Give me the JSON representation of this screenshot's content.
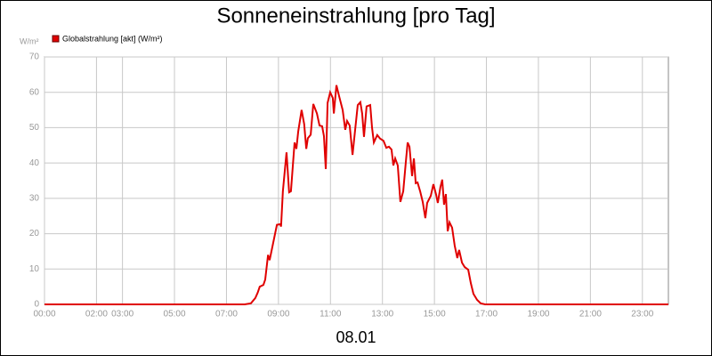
{
  "chart_data": {
    "type": "line",
    "title": "Sonneneinstrahlung [pro Tag]",
    "y_unit": "W/m²",
    "x_label": "08.01",
    "xlim": [
      0,
      24
    ],
    "ylim": [
      0,
      70
    ],
    "yticks": [
      0,
      10,
      20,
      30,
      40,
      50,
      60,
      70
    ],
    "xticks": [
      {
        "value": 0,
        "label": "00:00"
      },
      {
        "value": 2,
        "label": "02:00"
      },
      {
        "value": 3,
        "label": "03:00"
      },
      {
        "value": 5,
        "label": "05:00"
      },
      {
        "value": 7,
        "label": "07:00"
      },
      {
        "value": 9,
        "label": "09:00"
      },
      {
        "value": 11,
        "label": "11:00"
      },
      {
        "value": 13,
        "label": "13:00"
      },
      {
        "value": 15,
        "label": "15:00"
      },
      {
        "value": 17,
        "label": "17:00"
      },
      {
        "value": 19,
        "label": "19:00"
      },
      {
        "value": 21,
        "label": "21:00"
      },
      {
        "value": 23,
        "label": "23:00"
      }
    ],
    "grid": true,
    "series": [
      {
        "name": "Globalstrahlung [akt] (W/m²)",
        "color": "#e00000",
        "x": [
          0,
          7.7,
          7.94,
          8.11,
          8.2,
          8.28,
          8.42,
          8.49,
          8.6,
          8.66,
          8.8,
          8.94,
          9.07,
          9.1,
          9.17,
          9.31,
          9.41,
          9.48,
          9.62,
          9.69,
          9.76,
          9.89,
          9.99,
          10.07,
          10.13,
          10.24,
          10.34,
          10.48,
          10.58,
          10.68,
          10.75,
          10.82,
          10.89,
          10.99,
          11.09,
          11.13,
          11.23,
          11.33,
          11.47,
          11.57,
          11.64,
          11.74,
          11.85,
          11.95,
          12.05,
          12.15,
          12.22,
          12.29,
          12.39,
          12.53,
          12.6,
          12.67,
          12.8,
          12.91,
          13.04,
          13.15,
          13.25,
          13.35,
          13.42,
          13.49,
          13.59,
          13.69,
          13.8,
          13.9,
          13.97,
          14.04,
          14.14,
          14.21,
          14.28,
          14.35,
          14.45,
          14.55,
          14.65,
          14.72,
          14.86,
          14.96,
          15.06,
          15.13,
          15.23,
          15.3,
          15.37,
          15.44,
          15.51,
          15.58,
          15.68,
          15.78,
          15.88,
          15.95,
          16.06,
          16.16,
          16.3,
          16.4,
          16.5,
          16.64,
          16.78,
          16.95,
          24
        ],
        "values": [
          0,
          0,
          0.3,
          1.8,
          3.3,
          5,
          5.5,
          7,
          14,
          12.5,
          17.5,
          22.5,
          22.7,
          22,
          32,
          43,
          31.7,
          32,
          45.8,
          44,
          48.9,
          55,
          51,
          44,
          47,
          48,
          56.7,
          54,
          50.6,
          50.4,
          47.6,
          38.3,
          57,
          60,
          58.4,
          54,
          62,
          59,
          55,
          49.4,
          51.9,
          50.6,
          42.3,
          49.4,
          56.4,
          57.2,
          54,
          47.4,
          56,
          56.4,
          50,
          45.8,
          47.9,
          46.9,
          46.3,
          44.3,
          44.6,
          43.8,
          39.3,
          41.3,
          39.3,
          29,
          32,
          40.3,
          45.8,
          44.6,
          36.3,
          41.3,
          34.3,
          34.5,
          32,
          29,
          24.4,
          28.7,
          30.7,
          34,
          31.2,
          28.7,
          33.2,
          35.3,
          28.2,
          31.2,
          20.7,
          23.2,
          21.7,
          16.6,
          13.1,
          15.4,
          11.8,
          10.6,
          9.8,
          6,
          3,
          1.3,
          0.3,
          0,
          0
        ]
      }
    ]
  }
}
